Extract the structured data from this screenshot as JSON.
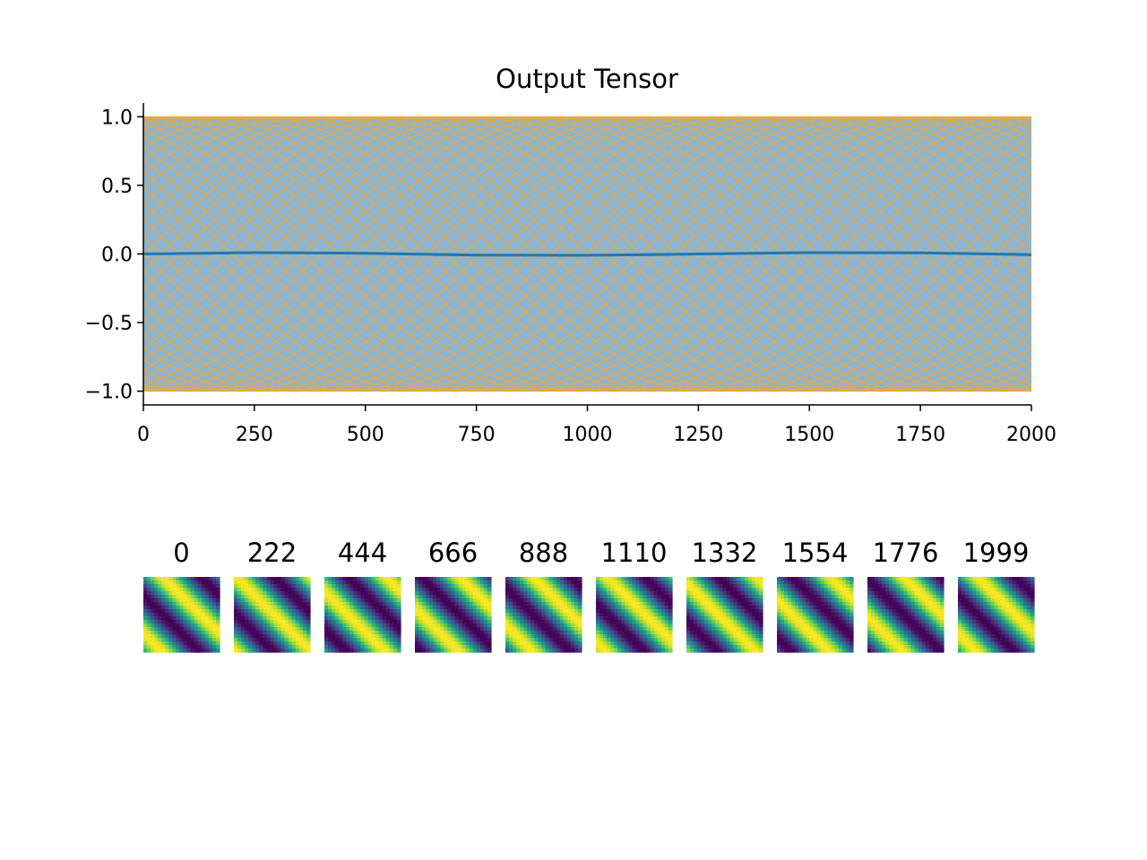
{
  "chart_data": {
    "type": "line",
    "title": "Output Tensor",
    "xlabel": "",
    "ylabel": "",
    "xlim": [
      0,
      2000
    ],
    "ylim": [
      -1.1,
      1.1
    ],
    "x_ticks": [
      "0",
      "250",
      "500",
      "750",
      "1000",
      "1250",
      "1500",
      "1750",
      "2000"
    ],
    "x_tick_values": [
      0,
      250,
      500,
      750,
      1000,
      1250,
      1500,
      1750,
      2000
    ],
    "y_ticks": [
      "1.0",
      "0.5",
      "0.0",
      "−0.5",
      "−1.0"
    ],
    "y_tick_values": [
      1.0,
      0.5,
      0.0,
      -0.5,
      -1.0
    ],
    "grid": false,
    "mean_series": {
      "color": "#1f77b4",
      "x": [
        0,
        250,
        500,
        750,
        1000,
        1250,
        1500,
        1750,
        2000
      ],
      "y": [
        0.0,
        0.01,
        0.005,
        -0.008,
        -0.01,
        0.0,
        0.01,
        0.008,
        -0.005
      ]
    },
    "band": {
      "color": "#8cb5d3",
      "lower": -1.0,
      "upper": 1.0
    },
    "traces": {
      "color": "#f0a830",
      "count": 50,
      "amplitude": 1.0,
      "period": 2000
    },
    "thumbnails": {
      "labels": [
        "0",
        "222",
        "444",
        "666",
        "888",
        "1110",
        "1332",
        "1554",
        "1776",
        "1999"
      ],
      "steps": [
        0,
        222,
        444,
        666,
        888,
        1110,
        1332,
        1554,
        1776,
        1999
      ],
      "colormap": "viridis"
    }
  }
}
